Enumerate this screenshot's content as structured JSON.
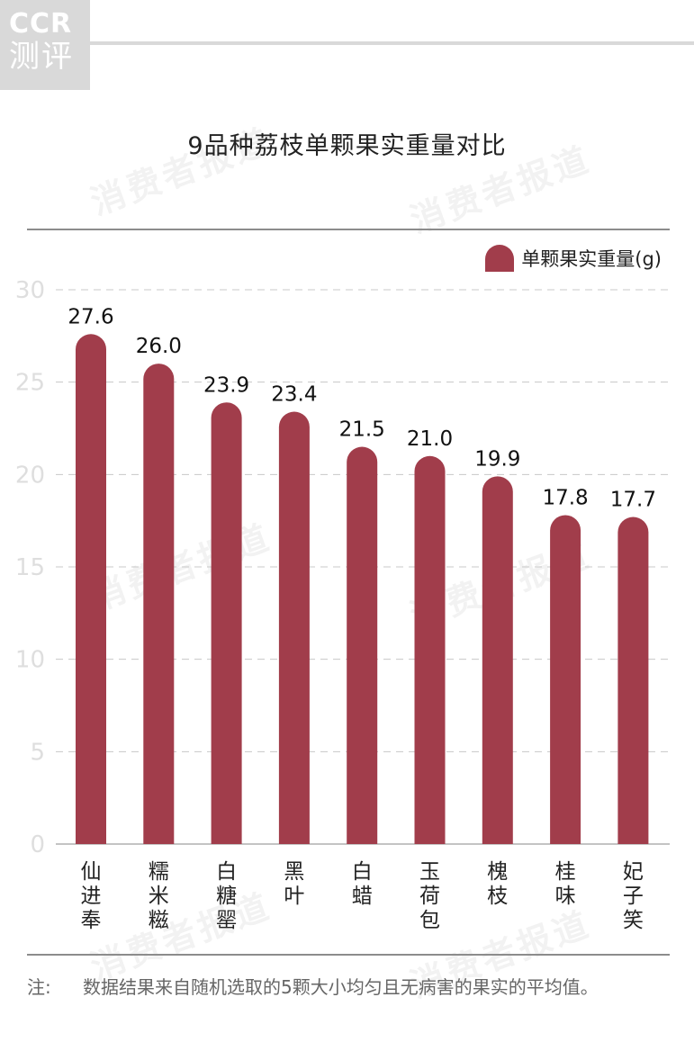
{
  "logo": {
    "line1": "CCR",
    "line2": "测评"
  },
  "watermark_text": "消费者报道",
  "note": {
    "label": "注:",
    "text": "数据结果来自随机选取的5颗大小均匀且无病害的果实的平均值。"
  },
  "chart_data": {
    "type": "bar",
    "title": "9品种荔枝单颗果实重量对比",
    "categories": [
      "仙进奉",
      "糯米糍",
      "白糖罂",
      "黑叶",
      "白蜡",
      "玉荷包",
      "槐枝",
      "桂味",
      "妃子笑"
    ],
    "series": [
      {
        "name": "单颗果实重量(g)",
        "values": [
          27.6,
          26.0,
          23.9,
          23.4,
          21.5,
          21.0,
          19.9,
          17.8,
          17.7
        ],
        "labels": [
          "27.6",
          "26.0",
          "23.9",
          "23.4",
          "21.5",
          "21.0",
          "19.9",
          "17.8",
          "17.7"
        ]
      }
    ],
    "yticks": [
      0,
      5,
      10,
      15,
      20,
      25,
      30
    ],
    "ylim": [
      0,
      30
    ],
    "grid": true,
    "legend_position": "top-right",
    "bar_color": "#a13d4b"
  }
}
